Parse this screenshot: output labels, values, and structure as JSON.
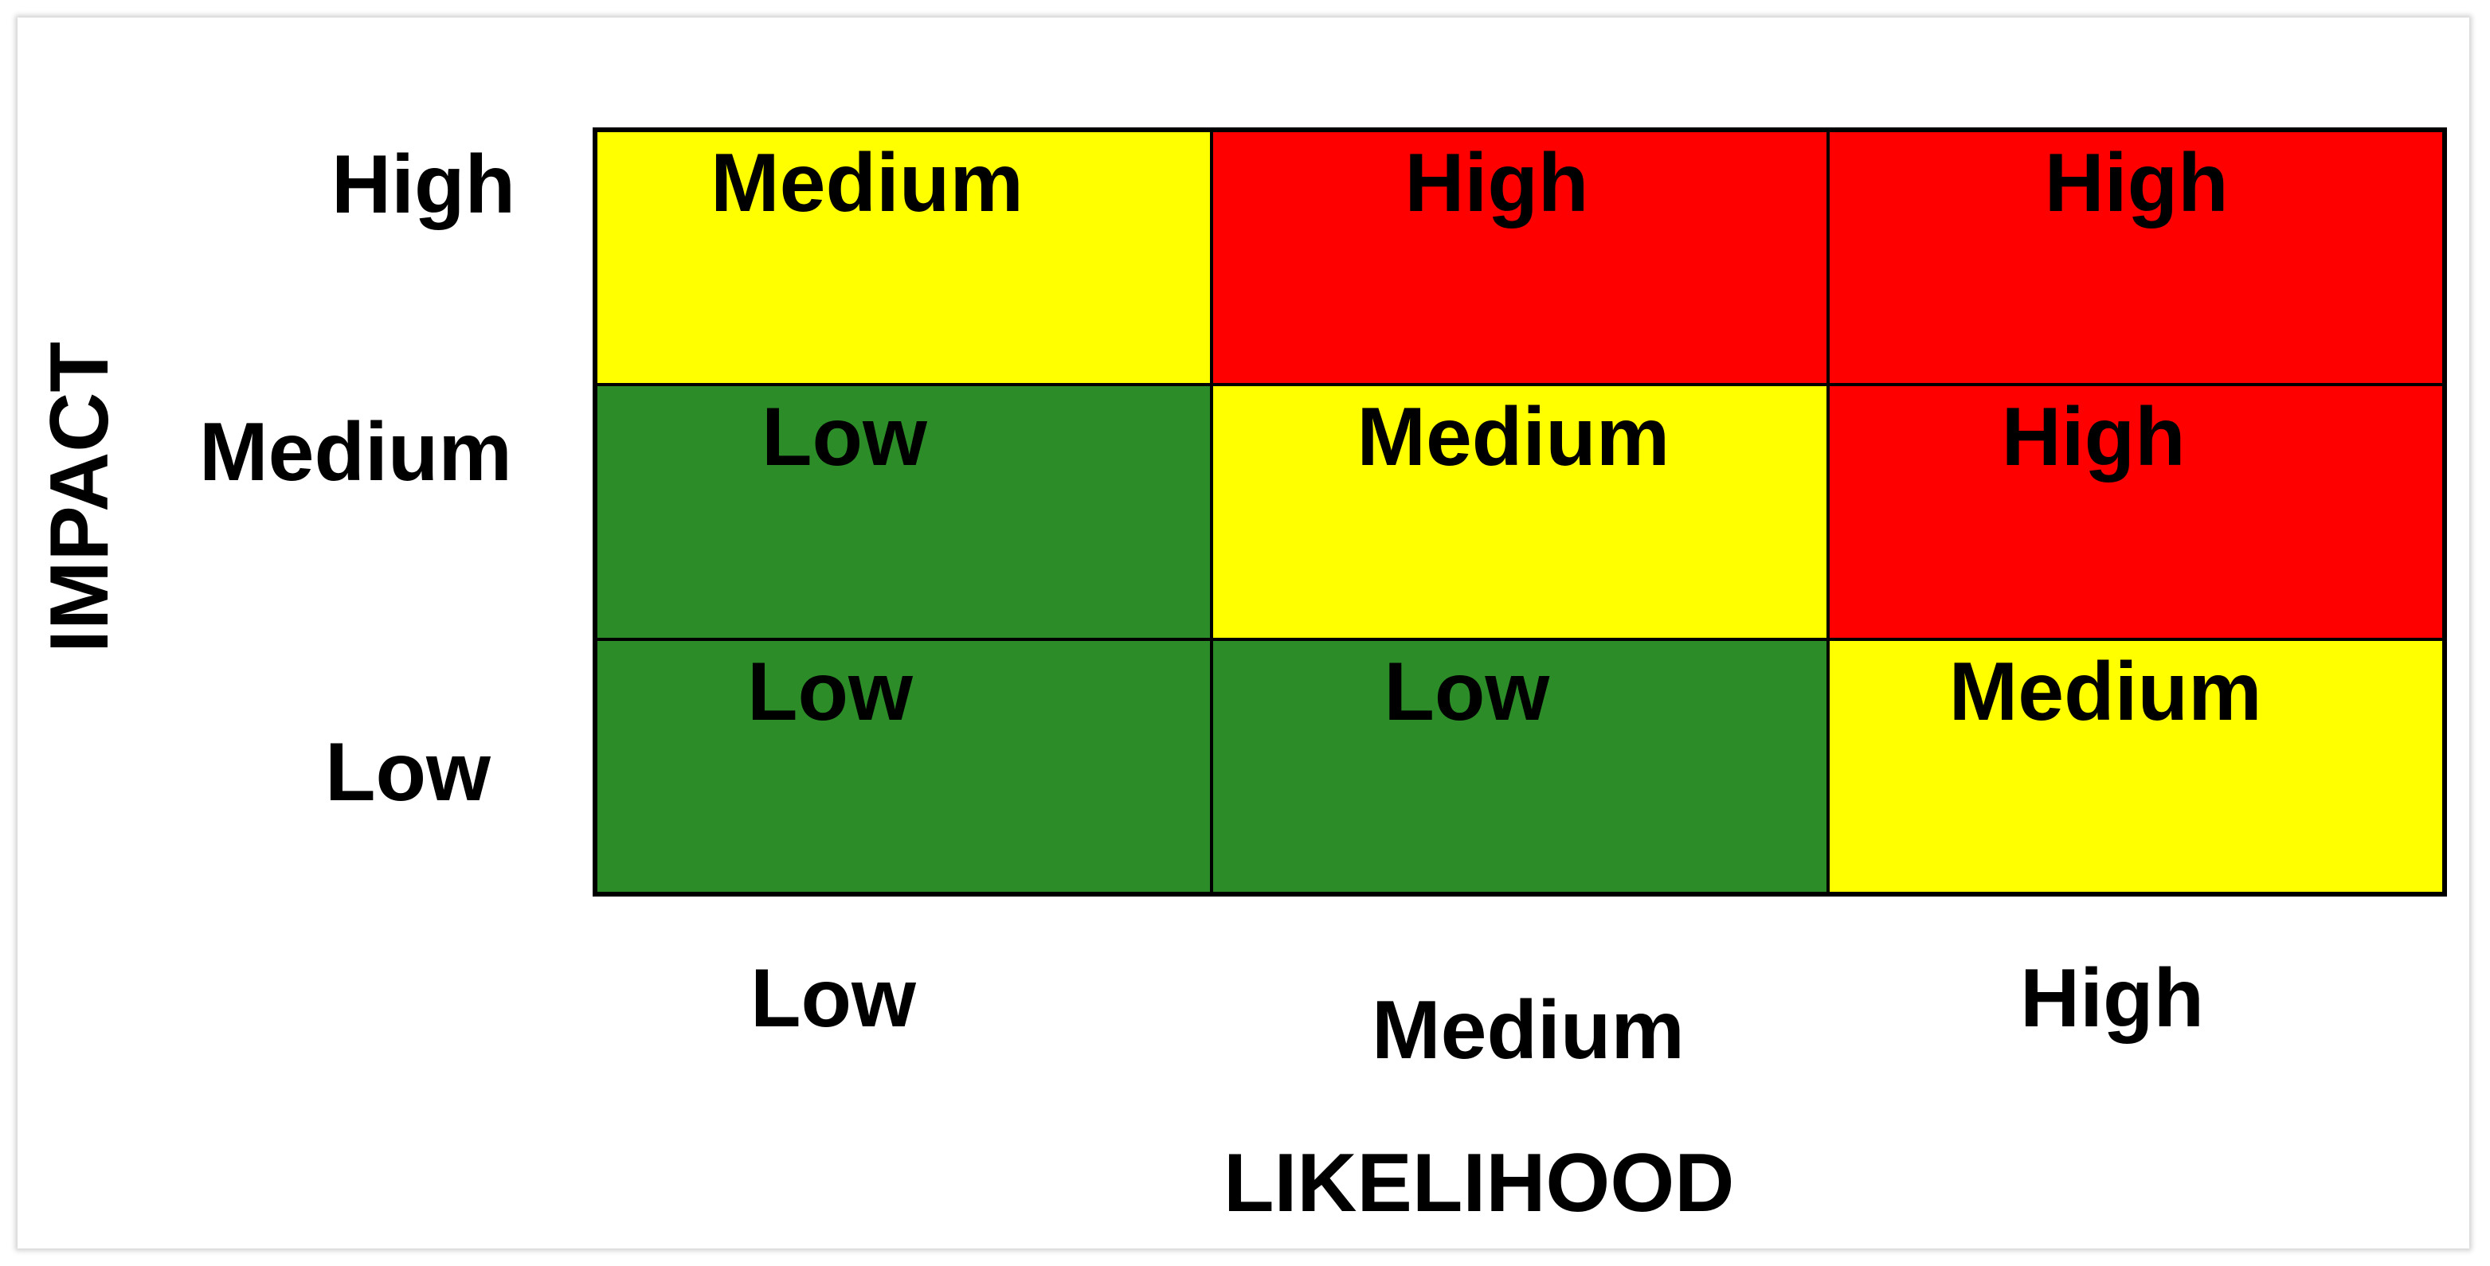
{
  "axes": {
    "y_title": "IMPACT",
    "x_title": "LIKELIHOOD",
    "y_labels": [
      "High",
      "Medium",
      "Low"
    ],
    "x_labels": [
      "Low",
      "Medium",
      "High"
    ]
  },
  "colors": {
    "High": "#ff0000",
    "Medium": "#ffff00",
    "Low": "#2c8c28"
  },
  "matrix": [
    [
      "Medium",
      "High",
      "High"
    ],
    [
      "Low",
      "Medium",
      "High"
    ],
    [
      "Low",
      "Low",
      "Medium"
    ]
  ]
}
